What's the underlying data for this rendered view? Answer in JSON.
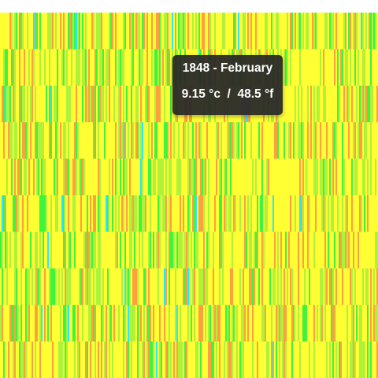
{
  "tooltip": {
    "title": "1848 - February",
    "value": "9.15 °c  /  48.5 °f"
  },
  "chart_data": {
    "type": "heatmap",
    "x": "year (one stripe per year)",
    "y": "month (12 rows)",
    "colors": {
      "cold": "#28e8ff",
      "cool": "#3df53d",
      "mild": "#aef23a",
      "normal": "#ffff33",
      "warm": "#ffa040"
    }
  }
}
